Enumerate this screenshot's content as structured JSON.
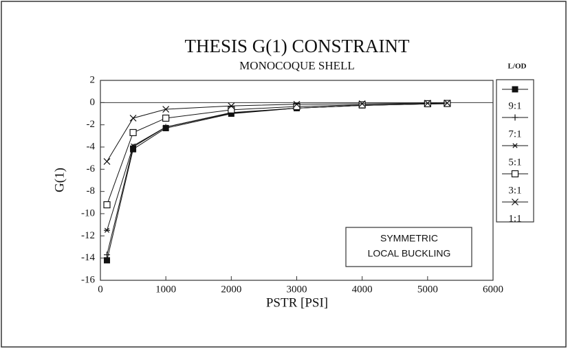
{
  "chart_data": {
    "type": "line",
    "title": "THESIS G(1) CONSTRAINT",
    "subtitle": "MONOCOQUE SHELL",
    "x_label": "PSTR [PSI]",
    "y_label": "G(1)",
    "legend_title": "L/OD",
    "annotation": [
      "SYMMETRIC",
      "LOCAL BUCKLING"
    ],
    "x": [
      100,
      500,
      1000,
      2000,
      3000,
      4000,
      5000,
      5300
    ],
    "series": [
      {
        "name": "9:1",
        "color": "#111111",
        "marker": "filled-square",
        "values": [
          -14.2,
          -4.2,
          -2.3,
          -1.0,
          -0.5,
          -0.25,
          -0.12,
          -0.1
        ]
      },
      {
        "name": "7:1",
        "color": "#111111",
        "marker": "plus",
        "values": [
          -13.7,
          -4.0,
          -2.2,
          -0.95,
          -0.5,
          -0.25,
          -0.12,
          -0.1
        ]
      },
      {
        "name": "5:1",
        "color": "#111111",
        "marker": "asterisk",
        "values": [
          -11.5,
          -3.9,
          -2.2,
          -0.9,
          -0.5,
          -0.25,
          -0.12,
          -0.1
        ]
      },
      {
        "name": "3:1",
        "color": "#111111",
        "marker": "open-square",
        "values": [
          -9.2,
          -2.7,
          -1.4,
          -0.65,
          -0.35,
          -0.2,
          -0.1,
          -0.08
        ]
      },
      {
        "name": "1:1",
        "color": "#111111",
        "marker": "x",
        "values": [
          -5.3,
          -1.4,
          -0.6,
          -0.3,
          -0.15,
          -0.1,
          -0.05,
          -0.04
        ]
      }
    ],
    "xlim": [
      0,
      6000
    ],
    "xticks": [
      0,
      1000,
      2000,
      3000,
      4000,
      5000,
      6000
    ],
    "ylim": [
      -16,
      2
    ],
    "yticks": [
      2,
      0,
      -2,
      -4,
      -6,
      -8,
      -10,
      -12,
      -14,
      -16
    ],
    "zero_line": true
  }
}
